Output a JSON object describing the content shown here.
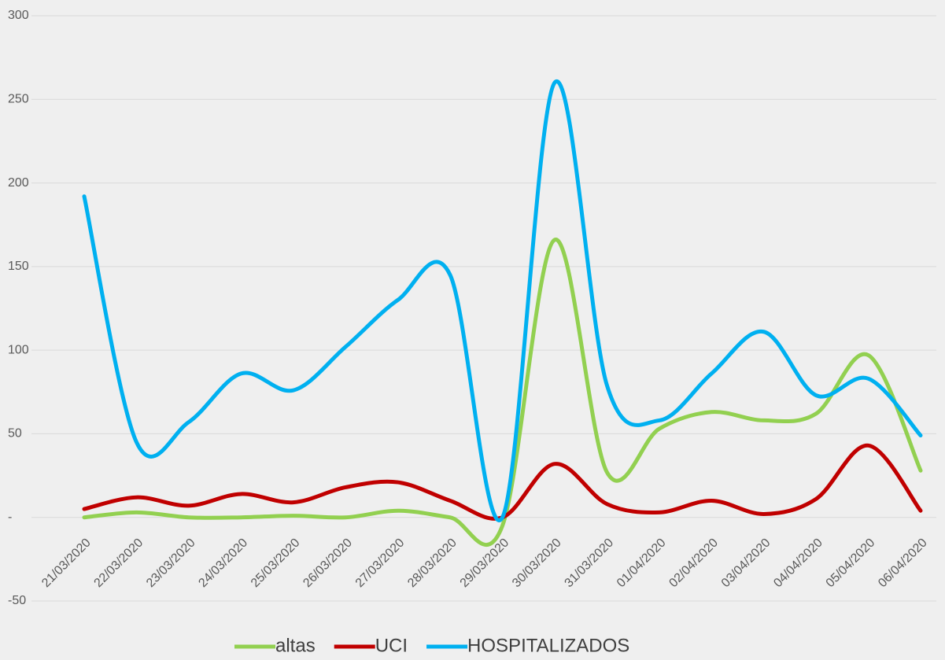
{
  "chart_data": {
    "type": "line",
    "categories": [
      "21/03/2020",
      "22/03/2020",
      "23/03/2020",
      "24/03/2020",
      "25/03/2020",
      "26/03/2020",
      "27/03/2020",
      "28/03/2020",
      "29/03/2020",
      "30/03/2020",
      "31/03/2020",
      "01/04/2020",
      "02/04/2020",
      "03/04/2020",
      "04/04/2020",
      "05/04/2020",
      "06/04/2020"
    ],
    "series": [
      {
        "name": "altas",
        "color": "#92d050",
        "values": [
          0,
          3,
          0,
          0,
          1,
          0,
          4,
          0,
          -5,
          166,
          27,
          53,
          63,
          58,
          62,
          97,
          28
        ]
      },
      {
        "name": "UCI",
        "color": "#c00000",
        "values": [
          5,
          12,
          7,
          14,
          9,
          18,
          21,
          10,
          0,
          32,
          8,
          3,
          10,
          2,
          11,
          43,
          4
        ]
      },
      {
        "name": "HOSPITALIZADOS",
        "color": "#00b0f0",
        "values": [
          192,
          45,
          57,
          86,
          76,
          102,
          130,
          145,
          0,
          260,
          79,
          58,
          86,
          111,
          73,
          83,
          49
        ]
      }
    ],
    "ylim": [
      -50,
      300
    ],
    "yticks": [
      {
        "value": -50,
        "label": "-50"
      },
      {
        "value": 0,
        "label": "-"
      },
      50,
      100,
      150,
      200,
      250,
      300
    ],
    "grid": true,
    "smooth": true,
    "legend": "bottom"
  }
}
